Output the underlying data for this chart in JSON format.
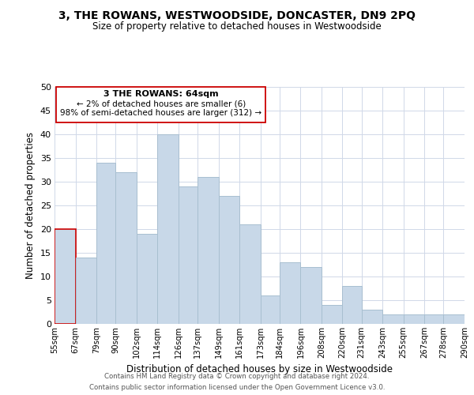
{
  "title": "3, THE ROWANS, WESTWOODSIDE, DONCASTER, DN9 2PQ",
  "subtitle": "Size of property relative to detached houses in Westwoodside",
  "xlabel": "Distribution of detached houses by size in Westwoodside",
  "ylabel": "Number of detached properties",
  "bar_color": "#c8d8e8",
  "bar_edge_color": "#a8bfd0",
  "highlight_bar_edge_color": "#cc0000",
  "bins": [
    55,
    67,
    79,
    90,
    102,
    114,
    126,
    137,
    149,
    161,
    173,
    184,
    196,
    208,
    220,
    231,
    243,
    255,
    267,
    278,
    290
  ],
  "bin_labels": [
    "55sqm",
    "67sqm",
    "79sqm",
    "90sqm",
    "102sqm",
    "114sqm",
    "126sqm",
    "137sqm",
    "149sqm",
    "161sqm",
    "173sqm",
    "184sqm",
    "196sqm",
    "208sqm",
    "220sqm",
    "231sqm",
    "243sqm",
    "255sqm",
    "267sqm",
    "278sqm",
    "290sqm"
  ],
  "values": [
    20,
    14,
    34,
    32,
    19,
    40,
    29,
    31,
    27,
    21,
    6,
    13,
    12,
    4,
    8,
    3,
    2,
    2,
    2,
    2
  ],
  "ylim": [
    0,
    50
  ],
  "yticks": [
    0,
    5,
    10,
    15,
    20,
    25,
    30,
    35,
    40,
    45,
    50
  ],
  "highlight_bar_index": 0,
  "annotation_title": "3 THE ROWANS: 64sqm",
  "annotation_line1": "← 2% of detached houses are smaller (6)",
  "annotation_line2": "98% of semi-detached houses are larger (312) →",
  "footer1": "Contains HM Land Registry data © Crown copyright and database right 2024.",
  "footer2": "Contains public sector information licensed under the Open Government Licence v3.0.",
  "bg_color": "#ffffff",
  "grid_color": "#d0d8e8"
}
